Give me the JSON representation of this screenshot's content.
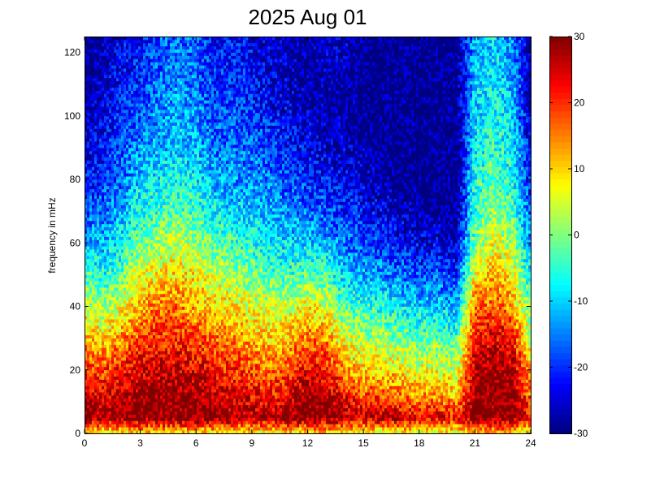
{
  "chart_data": {
    "type": "heatmap",
    "title": "2025 Aug 01",
    "xlabel": "",
    "ylabel": "frequency in mHz",
    "xlim": [
      0,
      24
    ],
    "ylim": [
      0,
      125
    ],
    "xticks": [
      "0",
      "3",
      "6",
      "9",
      "12",
      "15",
      "18",
      "21",
      "24"
    ],
    "yticks": [
      "0",
      "20",
      "40",
      "60",
      "80",
      "100",
      "120"
    ],
    "colorbar": {
      "range": [
        -30,
        30
      ],
      "ticks": [
        "30",
        "20",
        "10",
        "0",
        "-10",
        "-20",
        "-30"
      ],
      "colormap": "jet"
    },
    "grid": false,
    "x_hours": [
      0,
      1,
      2,
      3,
      4,
      5,
      6,
      7,
      8,
      9,
      10,
      11,
      12,
      13,
      14,
      15,
      16,
      17,
      18,
      19,
      20,
      21,
      22,
      23,
      24
    ],
    "y_mhz": [
      0,
      5,
      10,
      20,
      30,
      40,
      50,
      60,
      70,
      80,
      90,
      100,
      110,
      125
    ],
    "power_db": [
      [
        8,
        30,
        28,
        20,
        12,
        4,
        -4,
        -12,
        -18,
        -22,
        -26,
        -28,
        -30,
        -30
      ],
      [
        6,
        28,
        26,
        18,
        10,
        2,
        -6,
        -12,
        -16,
        -20,
        -22,
        -24,
        -26,
        -28
      ],
      [
        8,
        30,
        28,
        22,
        14,
        6,
        -2,
        -8,
        -12,
        -16,
        -18,
        -20,
        -22,
        -24
      ],
      [
        8,
        30,
        30,
        24,
        18,
        12,
        6,
        0,
        -6,
        -10,
        -14,
        -18,
        -20,
        -22
      ],
      [
        8,
        30,
        30,
        26,
        20,
        16,
        8,
        2,
        -4,
        -8,
        -12,
        -14,
        -16,
        -18
      ],
      [
        8,
        30,
        30,
        26,
        20,
        16,
        10,
        4,
        -2,
        -6,
        -10,
        -12,
        -14,
        -16
      ],
      [
        8,
        30,
        30,
        24,
        18,
        12,
        8,
        2,
        -4,
        -8,
        -12,
        -14,
        -16,
        -18
      ],
      [
        8,
        30,
        28,
        22,
        16,
        10,
        4,
        -2,
        -8,
        -12,
        -16,
        -18,
        -20,
        -22
      ],
      [
        6,
        28,
        26,
        20,
        14,
        8,
        2,
        -4,
        -10,
        -14,
        -16,
        -18,
        -20,
        -22
      ],
      [
        6,
        28,
        24,
        18,
        12,
        6,
        0,
        -6,
        -10,
        -14,
        -16,
        -20,
        -22,
        -24
      ],
      [
        6,
        28,
        22,
        16,
        10,
        4,
        -2,
        -8,
        -12,
        -16,
        -18,
        -22,
        -24,
        -26
      ],
      [
        8,
        30,
        26,
        18,
        12,
        4,
        -4,
        -10,
        -14,
        -18,
        -22,
        -24,
        -26,
        -28
      ],
      [
        8,
        30,
        30,
        24,
        16,
        8,
        -2,
        -10,
        -16,
        -20,
        -24,
        -26,
        -28,
        -28
      ],
      [
        8,
        30,
        30,
        22,
        14,
        6,
        -4,
        -12,
        -18,
        -22,
        -26,
        -28,
        -28,
        -26
      ],
      [
        6,
        28,
        24,
        14,
        6,
        -2,
        -10,
        -16,
        -20,
        -24,
        -26,
        -28,
        -28,
        -26
      ],
      [
        6,
        26,
        20,
        10,
        2,
        -4,
        -12,
        -18,
        -22,
        -26,
        -28,
        -30,
        -30,
        -30
      ],
      [
        6,
        28,
        20,
        10,
        2,
        -6,
        -14,
        -20,
        -24,
        -28,
        -30,
        -30,
        -30,
        -30
      ],
      [
        6,
        26,
        18,
        8,
        0,
        -8,
        -16,
        -22,
        -26,
        -30,
        -30,
        -30,
        -30,
        -30
      ],
      [
        6,
        24,
        16,
        6,
        -2,
        -10,
        -18,
        -24,
        -28,
        -30,
        -30,
        -30,
        -30,
        -30
      ],
      [
        6,
        24,
        16,
        6,
        -2,
        -10,
        -18,
        -24,
        -30,
        -30,
        -30,
        -30,
        -30,
        -30
      ],
      [
        6,
        22,
        14,
        4,
        -4,
        -12,
        -20,
        -26,
        -30,
        -30,
        -30,
        -30,
        -30,
        -30
      ],
      [
        10,
        30,
        30,
        28,
        22,
        16,
        8,
        0,
        -4,
        -6,
        -8,
        -10,
        -10,
        -12
      ],
      [
        10,
        30,
        30,
        30,
        24,
        18,
        12,
        6,
        2,
        -2,
        -4,
        -6,
        -8,
        -10
      ],
      [
        10,
        30,
        30,
        28,
        22,
        14,
        8,
        2,
        -2,
        -6,
        -8,
        -10,
        -12,
        -14
      ],
      [
        6,
        24,
        18,
        10,
        4,
        -2,
        -8,
        -14,
        -18,
        -22,
        -24,
        -26,
        -28,
        -30
      ]
    ]
  }
}
